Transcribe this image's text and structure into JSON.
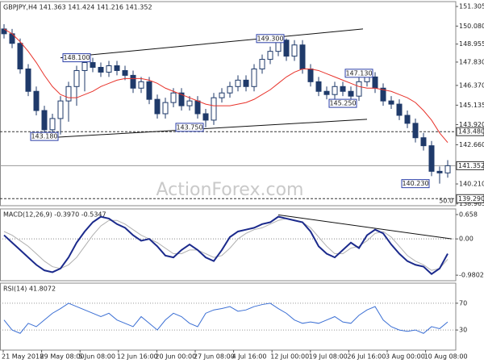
{
  "time_labels": [
    "21 May 2018",
    "29 May 08:00",
    "5 Jun 08:00",
    "12 Jun 16:00",
    "20 Jun 00:00",
    "27 Jun 08:00",
    "4 Jul 16:00",
    "12 Jul 00:00",
    "19 Jul 08:00",
    "26 Jul 16:00",
    "3 Aug 00:00",
    "10 Aug 08:00"
  ],
  "watermark": "ActionForex.com",
  "chart_data": [
    {
      "type": "candlestick",
      "title": "GBPJPY,H4  141.363 141.424 141.216 141.352",
      "up_color": "#ffffff",
      "down_color": "#1f3a6a",
      "open": [
        149.9,
        149.6,
        149.0,
        147.4,
        146.0,
        144.8,
        143.6,
        144.3,
        145.4,
        146.3,
        147.3,
        147.8,
        147.5,
        147.2,
        147.6,
        147.3,
        147.0,
        146.2,
        146.6,
        145.5,
        144.6,
        145.3,
        145.9,
        145.1,
        145.4,
        144.6,
        144.2,
        145.6,
        145.9,
        146.3,
        146.7,
        146.3,
        147.4,
        148.0,
        148.5,
        149.2,
        148.2,
        148.9,
        147.4,
        146.6,
        146.0,
        145.8,
        146.3,
        146.0,
        145.7,
        146.6,
        146.9,
        146.2,
        145.4,
        145.2,
        144.5,
        144.0,
        143.1,
        142.6,
        141.0,
        140.9
      ],
      "high": [
        150.2,
        149.9,
        149.3,
        147.7,
        146.3,
        145.1,
        144.6,
        145.7,
        146.6,
        147.6,
        148.1,
        148.1,
        147.8,
        147.9,
        147.9,
        147.6,
        147.3,
        146.9,
        146.9,
        145.8,
        145.6,
        146.2,
        146.2,
        145.7,
        145.7,
        144.9,
        145.9,
        146.2,
        146.6,
        147.0,
        147.0,
        147.7,
        148.3,
        148.8,
        149.3,
        149.3,
        149.2,
        149.2,
        147.7,
        146.9,
        146.3,
        146.6,
        146.6,
        146.3,
        146.9,
        147.2,
        147.2,
        146.5,
        145.7,
        145.5,
        144.8,
        144.3,
        143.4,
        142.9,
        141.3,
        141.7
      ],
      "low": [
        149.3,
        148.7,
        147.1,
        145.7,
        144.5,
        143.3,
        143.18,
        143.3,
        144.1,
        145.1,
        146.0,
        147.2,
        146.9,
        146.9,
        147.0,
        146.7,
        145.9,
        145.9,
        145.2,
        144.3,
        144.3,
        145.0,
        144.8,
        144.8,
        144.3,
        143.75,
        143.9,
        145.3,
        145.6,
        146.0,
        146.0,
        146.0,
        147.1,
        147.7,
        148.2,
        147.9,
        147.9,
        147.1,
        146.3,
        145.7,
        145.5,
        145.5,
        145.7,
        145.4,
        145.4,
        146.3,
        145.9,
        145.1,
        144.9,
        144.2,
        143.7,
        142.8,
        142.3,
        140.7,
        140.23,
        140.6
      ],
      "close": [
        149.6,
        149.0,
        147.4,
        146.0,
        144.8,
        143.6,
        144.3,
        145.4,
        146.3,
        147.3,
        147.8,
        147.5,
        147.2,
        147.6,
        147.3,
        147.0,
        146.2,
        146.6,
        145.5,
        144.6,
        145.3,
        145.9,
        145.1,
        145.4,
        144.6,
        144.2,
        145.6,
        145.9,
        146.3,
        146.7,
        146.3,
        147.4,
        148.0,
        148.5,
        149.2,
        148.2,
        148.9,
        147.4,
        146.6,
        146.0,
        145.8,
        146.3,
        146.0,
        145.7,
        146.6,
        146.9,
        146.2,
        145.4,
        145.2,
        144.5,
        144.0,
        143.1,
        142.6,
        141.0,
        140.9,
        141.35
      ],
      "ma": {
        "color": "#e8332b",
        "values": [
          149.9,
          149.6,
          149.1,
          148.5,
          147.8,
          147.0,
          146.3,
          145.8,
          145.6,
          145.6,
          145.8,
          146.0,
          146.3,
          146.5,
          146.7,
          146.8,
          146.8,
          146.8,
          146.7,
          146.5,
          146.2,
          146.0,
          145.8,
          145.6,
          145.4,
          145.2,
          145.1,
          145.1,
          145.1,
          145.2,
          145.3,
          145.5,
          145.8,
          146.1,
          146.5,
          146.9,
          147.2,
          147.4,
          147.4,
          147.3,
          147.1,
          146.9,
          146.7,
          146.5,
          146.3,
          146.2,
          146.2,
          146.1,
          146.0,
          145.8,
          145.6,
          145.3,
          144.8,
          144.2,
          143.4,
          142.8
        ]
      },
      "ylim": [
        138.85,
        151.61
      ],
      "yticks": [
        151.305,
        {
          "value": 150.08,
          "label": "150.080"
        },
        148.955,
        {
          "value": 147.83,
          "label": "147.830"
        },
        {
          "value": 146.37,
          "label": "146.370"
        },
        145.135,
        {
          "value": 143.92,
          "label": "143.920"
        },
        {
          "value": 142.66,
          "label": "142.660"
        },
        {
          "value": 140.21,
          "label": "140.210"
        },
        138.965
      ],
      "levels": [
        {
          "value": 143.48,
          "label": "143.480",
          "style": "dashed"
        },
        {
          "value": 141.352,
          "label": "141.352",
          "style": "solid"
        },
        {
          "value": 139.29,
          "label": "139.290",
          "style": "dashed"
        }
      ],
      "trendlines": [
        {
          "start": 148.1,
          "end": 149.9
        },
        {
          "start": 143.1,
          "end": 144.25
        }
      ],
      "annotations": [
        {
          "value": 148.1,
          "label": "148.100"
        },
        {
          "value": 149.3,
          "label": "149.300"
        },
        {
          "value": 147.13,
          "label": "147.130"
        },
        {
          "value": 145.25,
          "label": "145.250"
        },
        {
          "value": 143.18,
          "label": "143.180"
        },
        {
          "value": 143.75,
          "label": "143.750"
        },
        {
          "value": 140.23,
          "label": "140.230"
        }
      ],
      "corner_label": "50.0"
    },
    {
      "type": "line",
      "title": "MACD(12,26,9) -0.3970 -0.5347",
      "series": [
        {
          "color": "#1b2a8c",
          "values": [
            0.1,
            -0.1,
            -0.3,
            -0.5,
            -0.7,
            -0.85,
            -0.9,
            -0.8,
            -0.5,
            -0.1,
            0.2,
            0.45,
            0.6,
            0.55,
            0.4,
            0.3,
            0.1,
            -0.05,
            0.0,
            -0.2,
            -0.45,
            -0.5,
            -0.3,
            -0.15,
            -0.3,
            -0.5,
            -0.6,
            -0.3,
            0.05,
            0.2,
            0.25,
            0.3,
            0.4,
            0.45,
            0.6,
            0.55,
            0.5,
            0.45,
            0.2,
            -0.2,
            -0.4,
            -0.5,
            -0.3,
            -0.1,
            -0.25,
            0.1,
            0.25,
            0.15,
            -0.15,
            -0.4,
            -0.6,
            -0.7,
            -0.75,
            -0.95,
            -0.8,
            -0.4
          ]
        },
        {
          "color": "#b0b0b0",
          "values": [
            0.2,
            0.1,
            -0.05,
            -0.2,
            -0.4,
            -0.6,
            -0.75,
            -0.8,
            -0.7,
            -0.5,
            -0.2,
            0.1,
            0.35,
            0.5,
            0.5,
            0.4,
            0.25,
            0.1,
            0.0,
            -0.1,
            -0.25,
            -0.4,
            -0.4,
            -0.3,
            -0.3,
            -0.4,
            -0.5,
            -0.45,
            -0.25,
            0.0,
            0.15,
            0.25,
            0.3,
            0.4,
            0.5,
            0.55,
            0.5,
            0.45,
            0.3,
            0.05,
            -0.2,
            -0.4,
            -0.4,
            -0.25,
            -0.2,
            -0.05,
            0.15,
            0.2,
            0.05,
            -0.2,
            -0.45,
            -0.6,
            -0.7,
            -0.85,
            -0.8,
            -0.55
          ]
        }
      ],
      "ylim": [
        -1.13,
        0.81
      ],
      "yticks": [
        0.658,
        {
          "value": 0,
          "label": "0.00"
        },
        -0.9802
      ],
      "trendlines": [
        {
          "start": 0.65,
          "end": 0.0
        }
      ]
    },
    {
      "type": "line",
      "title": "RSI(14) 41.8072",
      "series": [
        {
          "color": "#3b6fd4",
          "values": [
            45,
            30,
            25,
            40,
            35,
            45,
            55,
            62,
            70,
            65,
            60,
            55,
            50,
            55,
            45,
            40,
            35,
            50,
            40,
            30,
            45,
            55,
            50,
            40,
            35,
            55,
            60,
            62,
            65,
            58,
            60,
            65,
            68,
            70,
            62,
            55,
            45,
            40,
            42,
            40,
            45,
            50,
            42,
            40,
            52,
            60,
            65,
            45,
            35,
            30,
            28,
            30,
            25,
            35,
            32,
            42
          ]
        }
      ],
      "ylim": [
        0,
        100
      ],
      "yticks": [
        70,
        30
      ]
    }
  ]
}
